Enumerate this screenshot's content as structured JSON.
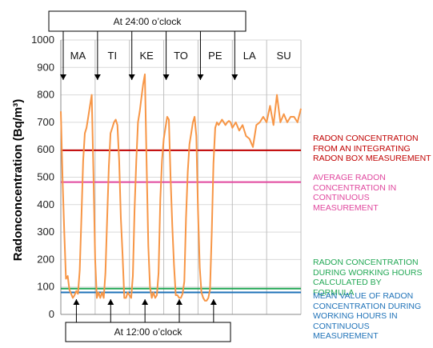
{
  "chart_data": {
    "type": "line",
    "ylabel": "Radonconcentration (Bq/m³)",
    "ylim": [
      0,
      1000
    ],
    "yticks": [
      0,
      100,
      200,
      300,
      400,
      500,
      600,
      700,
      800,
      900,
      1000
    ],
    "grid": true,
    "days": [
      "MA",
      "TI",
      "KE",
      "TO",
      "PE",
      "LA",
      "SU"
    ],
    "annotations": {
      "top": "At 24:00 o’clock",
      "bottom": "At 12:00 o’clock"
    },
    "series": [
      {
        "color": "#F79646",
        "x": [
          0,
          0.05,
          0.1,
          0.15,
          0.2,
          0.25,
          0.3,
          0.35,
          0.4,
          0.45,
          0.5,
          0.55,
          0.6,
          0.65,
          0.7,
          0.75,
          0.8,
          0.85,
          0.9,
          0.95,
          1.0,
          1.05,
          1.1,
          1.15,
          1.2,
          1.25,
          1.3,
          1.35,
          1.4,
          1.45,
          1.5,
          1.55,
          1.6,
          1.65,
          1.7,
          1.75,
          1.8,
          1.85,
          1.9,
          1.95,
          2.0,
          2.05,
          2.1,
          2.15,
          2.2,
          2.25,
          2.3,
          2.35,
          2.4,
          2.45,
          2.5,
          2.55,
          2.6,
          2.65,
          2.7,
          2.75,
          2.8,
          2.85,
          2.9,
          2.95,
          3.0,
          3.05,
          3.1,
          3.15,
          3.2,
          3.25,
          3.3,
          3.35,
          3.4,
          3.45,
          3.5,
          3.55,
          3.6,
          3.65,
          3.7,
          3.75,
          3.8,
          3.85,
          3.9,
          3.95,
          4.0,
          4.05,
          4.1,
          4.15,
          4.2,
          4.25,
          4.3,
          4.35,
          4.4,
          4.45,
          4.5,
          4.55,
          4.6,
          4.65,
          4.7,
          4.75,
          4.8,
          4.85,
          4.9,
          4.95,
          5.0,
          5.1,
          5.2,
          5.3,
          5.4,
          5.5,
          5.6,
          5.7,
          5.8,
          5.9,
          6.0,
          6.1,
          6.2,
          6.3,
          6.4,
          6.5,
          6.6,
          6.7,
          6.8,
          6.9,
          7.0
        ],
        "y": [
          740,
          500,
          300,
          130,
          140,
          90,
          75,
          60,
          70,
          85,
          75,
          160,
          350,
          560,
          660,
          680,
          720,
          760,
          800,
          520,
          200,
          60,
          80,
          60,
          80,
          60,
          150,
          350,
          540,
          660,
          680,
          700,
          710,
          690,
          560,
          350,
          220,
          60,
          60,
          80,
          70,
          60,
          140,
          380,
          560,
          700,
          740,
          790,
          840,
          875,
          560,
          250,
          100,
          60,
          80,
          60,
          70,
          150,
          420,
          560,
          640,
          680,
          720,
          710,
          500,
          320,
          180,
          70,
          70,
          60,
          60,
          75,
          120,
          350,
          520,
          620,
          660,
          700,
          720,
          650,
          380,
          170,
          80,
          60,
          50,
          50,
          60,
          90,
          300,
          550,
          680,
          700,
          690,
          700,
          710,
          700,
          690,
          700,
          705,
          700,
          680,
          700,
          670,
          690,
          650,
          640,
          610,
          690,
          700,
          720,
          700,
          760,
          690,
          800,
          700,
          730,
          700,
          720,
          720,
          700,
          750
        ]
      }
    ],
    "reference_lines": [
      {
        "value": 598,
        "color": "#C00000",
        "label": "RADON CONCENTRATION FROM AN INTEGRATING RADON BOX MEASUREMENT"
      },
      {
        "value": 482,
        "color": "#E0479E",
        "label": "AVERAGE RADON CONCENTRATION IN CONTINUOUS MEASUREMENT"
      },
      {
        "value": 94,
        "color": "#22A855",
        "label": "RADON CONCENTRATION DURING WORKING HOURS CALCULATED BY FORMULA"
      },
      {
        "value": 80,
        "color": "#1F72B8",
        "label": "MEAN VALUE OF RADON CONCENTRATION DURING WORKING HOURS IN CONTINUOUS MEASUREMENT"
      }
    ]
  }
}
